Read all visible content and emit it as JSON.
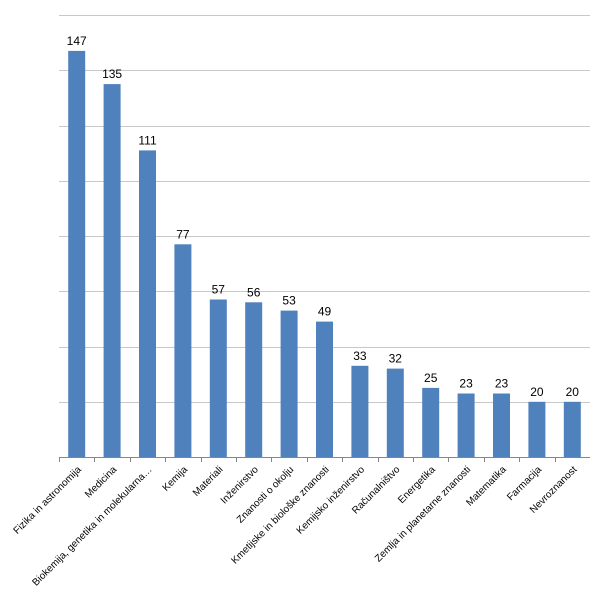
{
  "chart_data": {
    "type": "bar",
    "categories": [
      "Fizika in astronomija",
      "Medicina",
      "Biokemija, genetika in molekularna…",
      "Kemija",
      "Materiali",
      "Inženirstvo",
      "Znanosti o okolju",
      "Kmetijske in biološke znanosti",
      "Kemijsko inženirstvo",
      "Računalništvo",
      "Energetika",
      "Zemlja in planetarne znanosti",
      "Matematika",
      "Farmacija",
      "Nevroznanost"
    ],
    "values": [
      147,
      135,
      111,
      77,
      57,
      56,
      53,
      49,
      33,
      32,
      25,
      23,
      23,
      20,
      20
    ],
    "ylim": [
      0,
      160
    ],
    "ytick_step": 20,
    "grid": true,
    "data_labels": true,
    "bar_color": "#4f81bd"
  }
}
